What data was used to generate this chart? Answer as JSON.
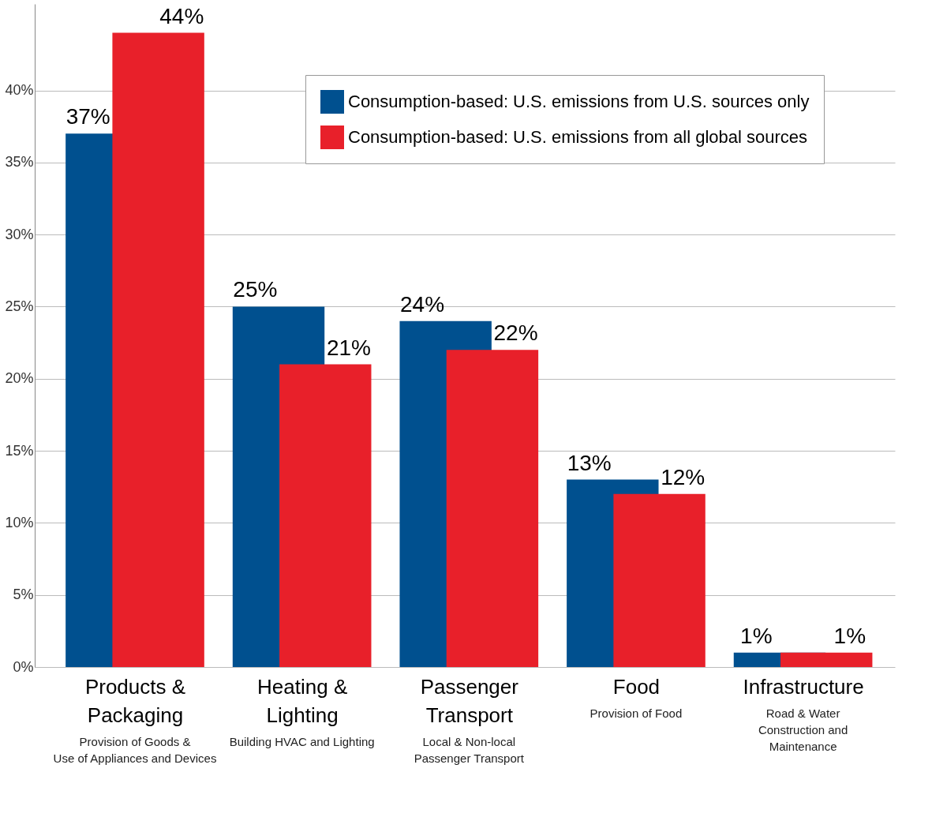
{
  "chart_data": {
    "type": "bar",
    "categories": [
      "Products &\nPackaging",
      "Heating &\nLighting",
      "Passenger\nTransport",
      "Food",
      "Infrastructure"
    ],
    "series": [
      {
        "name": "Consumption-based: U.S. emissions from U.S. sources only",
        "color": "#00508f",
        "values": [
          37,
          25,
          24,
          13,
          1
        ]
      },
      {
        "name": "Consumption-based: U.S. emissions from all global sources",
        "color": "#e8202a",
        "values": [
          44,
          21,
          22,
          12,
          1
        ]
      }
    ],
    "ylim": [
      0,
      46
    ],
    "yticks": [
      {
        "value": 0,
        "label": "0%"
      },
      {
        "value": 5,
        "label": "5%"
      },
      {
        "value": 10,
        "label": "10%"
      },
      {
        "value": 15,
        "label": "15%"
      },
      {
        "value": 20,
        "label": "20%"
      },
      {
        "value": 25,
        "label": "25%"
      },
      {
        "value": 30,
        "label": "30%"
      },
      {
        "value": 35,
        "label": "35%"
      },
      {
        "value": 40,
        "label": "40%"
      }
    ],
    "value_labels": [
      [
        "37%",
        "25%",
        "24%",
        "13%",
        "1%"
      ],
      [
        "44%",
        "21%",
        "22%",
        "12%",
        "1%"
      ]
    ],
    "annotations": [
      "Provision of Goods &\nUse of Appliances and Devices",
      "Building HVAC and Lighting",
      "Local & Non-local\nPassenger Transport",
      "Provision of Food",
      "Road & Water\nConstruction and\nMaintenance"
    ],
    "grid": "y",
    "legend": "top right"
  }
}
